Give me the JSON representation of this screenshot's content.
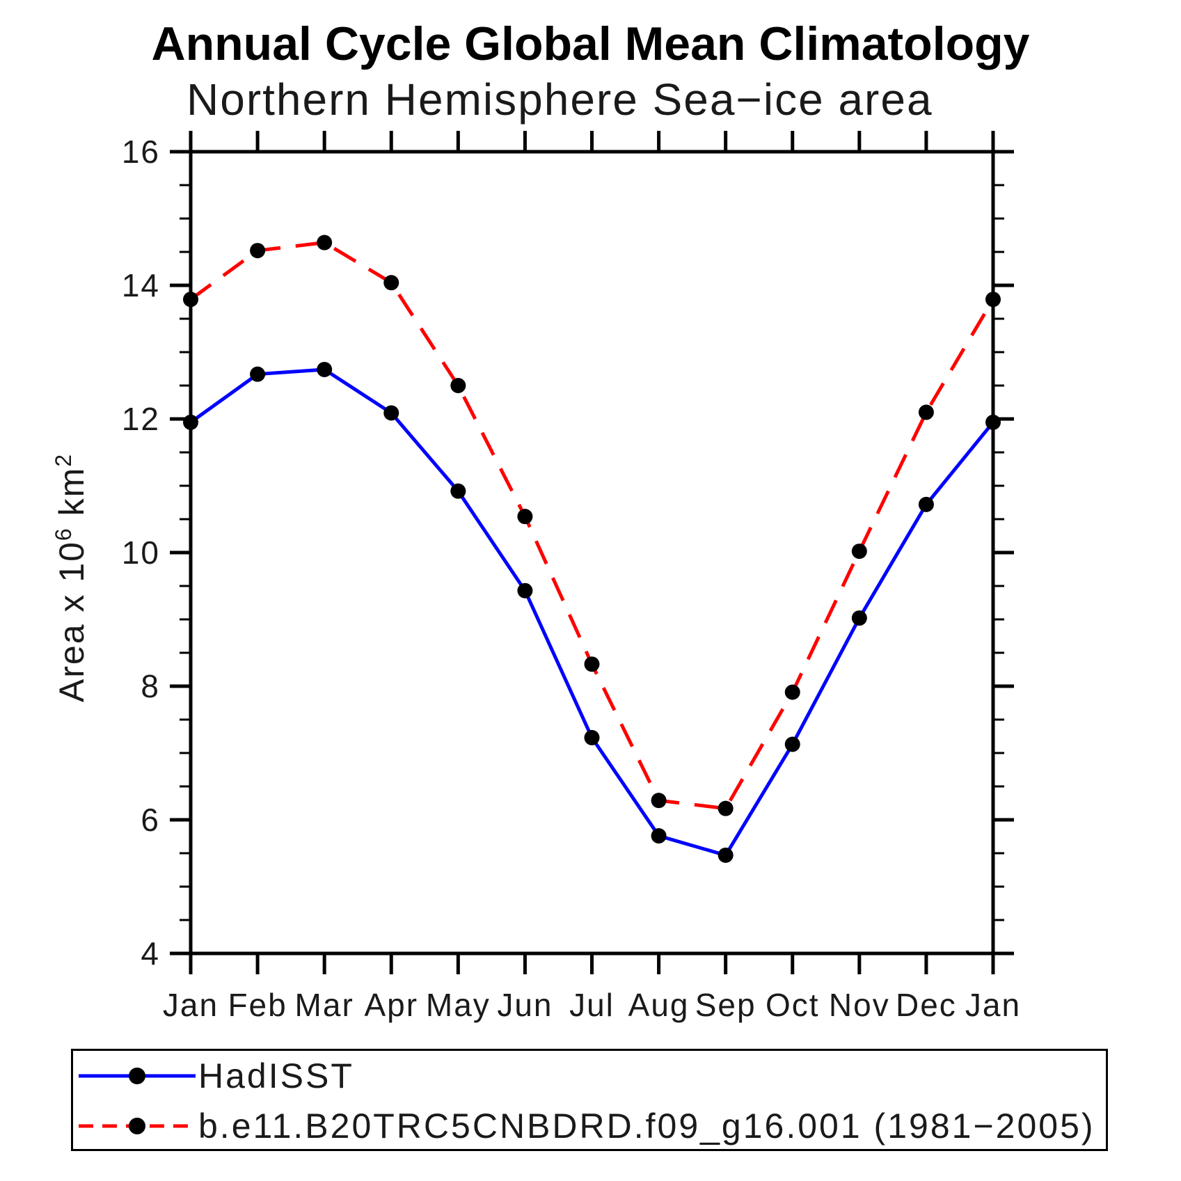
{
  "chart_data": {
    "type": "line",
    "title": "Annual Cycle Global Mean Climatology",
    "subtitle": "Northern Hemisphere Sea−ice area",
    "xlabel": "",
    "ylabel": "Area x 10^6 km^2",
    "ylabel_parts": [
      {
        "text": "Area x 10",
        "sup": false
      },
      {
        "text": "6",
        "sup": true
      },
      {
        "text": " km",
        "sup": false
      },
      {
        "text": "2",
        "sup": true
      }
    ],
    "categories": [
      "Jan",
      "Feb",
      "Mar",
      "Apr",
      "May",
      "Jun",
      "Jul",
      "Aug",
      "Sep",
      "Oct",
      "Nov",
      "Dec",
      "Jan"
    ],
    "ylim": [
      4,
      16
    ],
    "ytick_major": 2,
    "ytick_minor": 0.5,
    "ytick_labels": [
      "4",
      "6",
      "8",
      "10",
      "12",
      "14",
      "16"
    ],
    "grid": false,
    "legend_position": "bottom-left-box",
    "marker": {
      "shape": "circle",
      "color": "#000000"
    },
    "axis_color": "#000000",
    "series": [
      {
        "name": "HadISST",
        "color": "#0000ff",
        "line_style": "solid",
        "values": [
          11.95,
          12.67,
          12.74,
          12.09,
          10.92,
          9.43,
          7.23,
          5.76,
          5.47,
          7.13,
          9.02,
          10.72,
          11.95
        ]
      },
      {
        "name": "b.e11.B20TRC5CNBDRD.f09_g16.001 (1981−2005)",
        "color": "#ff0000",
        "line_style": "dashed",
        "values": [
          13.79,
          14.52,
          14.64,
          14.04,
          12.5,
          10.54,
          8.33,
          6.29,
          6.17,
          7.91,
          10.02,
          12.1,
          13.79
        ]
      }
    ]
  }
}
